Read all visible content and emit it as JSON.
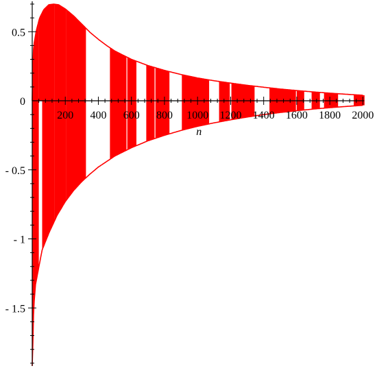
{
  "chart_data": {
    "type": "area",
    "title": "",
    "xlabel": "n",
    "ylabel": "",
    "xlim": [
      0,
      2000
    ],
    "ylim": [
      -1.92,
      0.72
    ],
    "x_ticks": [
      {
        "value": 200,
        "label": "200"
      },
      {
        "value": 400,
        "label": "400"
      },
      {
        "value": 600,
        "label": "600"
      },
      {
        "value": 800,
        "label": "800"
      },
      {
        "value": 1000,
        "label": "1000"
      },
      {
        "value": 1200,
        "label": "1200"
      },
      {
        "value": 1400,
        "label": "1400"
      },
      {
        "value": 1600,
        "label": "1600"
      },
      {
        "value": 1800,
        "label": "1800"
      },
      {
        "value": 2000,
        "label": "2000"
      }
    ],
    "y_ticks": [
      {
        "value": 0.5,
        "label": "0.5"
      },
      {
        "value": 0,
        "label": "0"
      },
      {
        "value": -0.5,
        "label": "- 0.5"
      },
      {
        "value": -1,
        "label": "- 1"
      },
      {
        "value": -1.5,
        "label": "- 1.5"
      }
    ],
    "grid": false,
    "fill_color": "#ff0000",
    "upper_envelope": [
      [
        0,
        0
      ],
      [
        5,
        0.34
      ],
      [
        12,
        0.42
      ],
      [
        25,
        0.51
      ],
      [
        45,
        0.6
      ],
      [
        70,
        0.66
      ],
      [
        100,
        0.695
      ],
      [
        130,
        0.7
      ],
      [
        160,
        0.695
      ],
      [
        200,
        0.665
      ],
      [
        250,
        0.615
      ],
      [
        300,
        0.555
      ],
      [
        350,
        0.495
      ],
      [
        400,
        0.445
      ],
      [
        450,
        0.4
      ],
      [
        500,
        0.36
      ],
      [
        600,
        0.3
      ],
      [
        700,
        0.255
      ],
      [
        800,
        0.22
      ],
      [
        900,
        0.19
      ],
      [
        1000,
        0.165
      ],
      [
        1100,
        0.145
      ],
      [
        1200,
        0.128
      ],
      [
        1300,
        0.112
      ],
      [
        1400,
        0.098
      ],
      [
        1500,
        0.085
      ],
      [
        1600,
        0.074
      ],
      [
        1700,
        0.064
      ],
      [
        1800,
        0.055
      ],
      [
        1900,
        0.047
      ],
      [
        2000,
        0.04
      ]
    ],
    "lower_envelope": [
      [
        0,
        -1.92
      ],
      [
        3,
        -1.8
      ],
      [
        8,
        -1.55
      ],
      [
        12,
        -1.45
      ],
      [
        20,
        -1.33
      ],
      [
        60,
        -1.08
      ],
      [
        100,
        -0.96
      ],
      [
        150,
        -0.83
      ],
      [
        200,
        -0.73
      ],
      [
        250,
        -0.65
      ],
      [
        300,
        -0.585
      ],
      [
        350,
        -0.53
      ],
      [
        400,
        -0.48
      ],
      [
        450,
        -0.44
      ],
      [
        500,
        -0.4
      ],
      [
        600,
        -0.34
      ],
      [
        700,
        -0.29
      ],
      [
        800,
        -0.25
      ],
      [
        900,
        -0.215
      ],
      [
        1000,
        -0.185
      ],
      [
        1100,
        -0.16
      ],
      [
        1200,
        -0.138
      ],
      [
        1300,
        -0.118
      ],
      [
        1400,
        -0.1
      ],
      [
        1500,
        -0.085
      ],
      [
        1600,
        -0.072
      ],
      [
        1700,
        -0.06
      ],
      [
        1800,
        -0.05
      ],
      [
        1900,
        -0.041
      ],
      [
        2000,
        -0.033
      ]
    ],
    "bands": [
      {
        "x": [
          0,
          40
        ],
        "upper_bound": true,
        "lower_bound": true
      },
      {
        "x": [
          40,
          60
        ],
        "upper_bound": true,
        "lower_bound": false
      },
      {
        "x": [
          60,
          135
        ],
        "upper_bound": true,
        "lower_bound": true
      },
      {
        "x": [
          135,
          205
        ],
        "upper_bound": true,
        "lower_bound": true
      },
      {
        "x": [
          205,
          325
        ],
        "upper_bound": true,
        "lower_bound": true
      },
      {
        "x": [
          470,
          570
        ],
        "upper_bound": true,
        "lower_bound": true
      },
      {
        "x": [
          575,
          630
        ],
        "upper_bound": true,
        "lower_bound": true
      },
      {
        "x": [
          690,
          740
        ],
        "upper_bound": true,
        "lower_bound": true
      },
      {
        "x": [
          745,
          830
        ],
        "upper_bound": true,
        "lower_bound": true
      },
      {
        "x": [
          905,
          1070
        ],
        "upper_bound": true,
        "lower_bound": true
      },
      {
        "x": [
          1130,
          1195
        ],
        "upper_bound": true,
        "lower_bound": true
      },
      {
        "x": [
          1205,
          1345
        ],
        "upper_bound": true,
        "lower_bound": true
      },
      {
        "x": [
          1435,
          1595
        ],
        "upper_bound": true,
        "lower_bound": true
      },
      {
        "x": [
          1600,
          1645
        ],
        "upper_bound": true,
        "lower_bound": true
      },
      {
        "x": [
          1690,
          1740
        ],
        "upper_bound": true,
        "lower_bound": true
      },
      {
        "x": [
          1765,
          1850
        ],
        "upper_bound": true,
        "lower_bound": true
      },
      {
        "x": [
          1945,
          2010
        ],
        "upper_bound": true,
        "lower_bound": true
      }
    ]
  }
}
